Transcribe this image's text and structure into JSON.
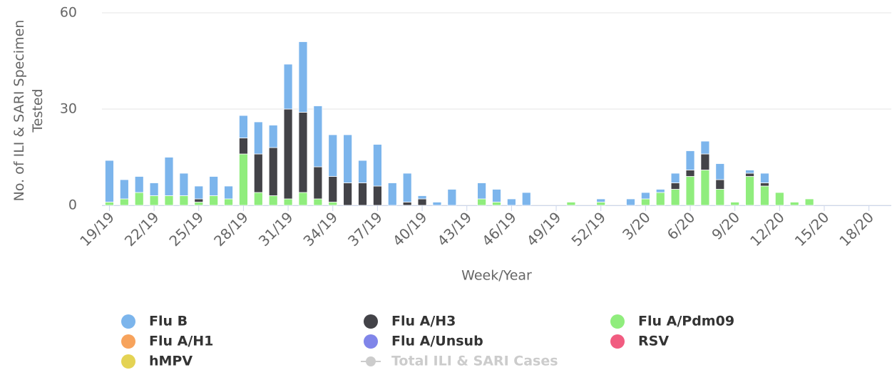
{
  "chart_data": {
    "type": "bar",
    "stacked": true,
    "y_axis_label": "No. of ILI & SARI Specimen Tested",
    "x_axis_label": "Week/Year",
    "categories": [
      "19/19",
      null,
      null,
      "22/19",
      null,
      null,
      "25/19",
      null,
      null,
      "28/19",
      null,
      null,
      "31/19",
      null,
      null,
      "34/19",
      null,
      null,
      "37/19",
      null,
      null,
      "40/19",
      null,
      null,
      "43/19",
      null,
      null,
      "46/19",
      null,
      null,
      "49/19",
      null,
      null,
      "52/19",
      null,
      null,
      "3/20",
      null,
      null,
      "6/20",
      null,
      null,
      "9/20",
      null,
      null,
      "12/20",
      null,
      null,
      "15/20",
      null,
      null,
      "18/20",
      null
    ],
    "ylim": [
      0,
      60
    ],
    "yticks": [
      0,
      30,
      60
    ],
    "grid": true,
    "series": [
      {
        "name": "Flu B",
        "color": "#7cb5ec",
        "values": [
          13,
          6,
          5,
          4,
          12,
          7,
          4,
          6,
          4,
          7,
          10,
          7,
          14,
          22,
          19,
          13,
          15,
          7,
          13,
          7,
          9,
          1,
          1,
          5,
          0,
          5,
          4,
          2,
          4,
          0,
          0,
          0,
          0,
          1,
          0,
          2,
          2,
          1,
          3,
          6,
          4,
          5,
          0,
          1,
          3,
          0,
          0,
          0,
          0,
          0,
          0,
          0,
          0
        ]
      },
      {
        "name": "Flu A/H3",
        "color": "#434348",
        "values": [
          0,
          0,
          0,
          0,
          0,
          0,
          1,
          0,
          0,
          5,
          12,
          15,
          28,
          25,
          10,
          8,
          7,
          7,
          6,
          0,
          1,
          2,
          0,
          0,
          0,
          0,
          0,
          0,
          0,
          0,
          0,
          0,
          0,
          0,
          0,
          0,
          0,
          0,
          2,
          2,
          5,
          3,
          0,
          1,
          1,
          0,
          0,
          0,
          0,
          0,
          0,
          0,
          0
        ]
      },
      {
        "name": "Flu A/Pdm09",
        "color": "#90ed7d",
        "values": [
          1,
          2,
          4,
          3,
          3,
          3,
          1,
          3,
          2,
          16,
          4,
          3,
          2,
          4,
          2,
          1,
          0,
          0,
          0,
          0,
          0,
          0,
          0,
          0,
          0,
          2,
          1,
          0,
          0,
          0,
          0,
          1,
          0,
          1,
          0,
          0,
          2,
          4,
          5,
          9,
          11,
          5,
          1,
          9,
          6,
          4,
          1,
          2,
          0,
          0,
          0,
          0,
          0
        ]
      },
      {
        "name": "Flu A/H1",
        "color": "#f7a35c",
        "values": [
          0,
          0,
          0,
          0,
          0,
          0,
          0,
          0,
          0,
          0,
          0,
          0,
          0,
          0,
          0,
          0,
          0,
          0,
          0,
          0,
          0,
          0,
          0,
          0,
          0,
          0,
          0,
          0,
          0,
          0,
          0,
          0,
          0,
          0,
          0,
          0,
          0,
          0,
          0,
          0,
          0,
          0,
          0,
          0,
          0,
          0,
          0,
          0,
          0,
          0,
          0,
          0,
          0
        ]
      },
      {
        "name": "Flu A/Unsub",
        "color": "#8085e9",
        "values": [
          0,
          0,
          0,
          0,
          0,
          0,
          0,
          0,
          0,
          0,
          0,
          0,
          0,
          0,
          0,
          0,
          0,
          0,
          0,
          0,
          0,
          0,
          0,
          0,
          0,
          0,
          0,
          0,
          0,
          0,
          0,
          0,
          0,
          0,
          0,
          0,
          0,
          0,
          0,
          0,
          0,
          0,
          0,
          0,
          0,
          0,
          0,
          0,
          0,
          0,
          0,
          0,
          0
        ]
      },
      {
        "name": "RSV",
        "color": "#f15c80",
        "values": [
          0,
          0,
          0,
          0,
          0,
          0,
          0,
          0,
          0,
          0,
          0,
          0,
          0,
          0,
          0,
          0,
          0,
          0,
          0,
          0,
          0,
          0,
          0,
          0,
          0,
          0,
          0,
          0,
          0,
          0,
          0,
          0,
          0,
          0,
          0,
          0,
          0,
          0,
          0,
          0,
          0,
          0,
          0,
          0,
          0,
          0,
          0,
          0,
          0,
          0,
          0,
          0,
          0
        ]
      },
      {
        "name": "hMPV",
        "color": "#e4d354",
        "values": [
          0,
          0,
          0,
          0,
          0,
          0,
          0,
          0,
          0,
          0,
          0,
          0,
          0,
          0,
          0,
          0,
          0,
          0,
          0,
          0,
          0,
          0,
          0,
          0,
          0,
          0,
          0,
          0,
          0,
          0,
          0,
          0,
          0,
          0,
          0,
          0,
          0,
          0,
          0,
          0,
          0,
          0,
          0,
          0,
          0,
          0,
          0,
          0,
          0,
          0,
          0,
          0,
          0
        ]
      },
      {
        "name": "Total ILI & SARI Cases",
        "type": "line",
        "color": "#cccccc",
        "visible": false,
        "values": [
          null,
          null,
          null,
          null,
          null,
          null,
          null,
          null,
          null,
          null,
          null,
          null,
          null,
          null,
          null,
          null,
          null,
          null,
          null,
          null,
          null,
          null,
          null,
          null,
          null,
          null,
          null,
          null,
          null,
          null,
          null,
          null,
          null,
          null,
          null,
          null,
          null,
          null,
          null,
          null,
          null,
          null,
          null,
          null,
          null,
          null,
          null,
          null,
          null,
          null,
          null,
          null,
          null
        ]
      }
    ]
  }
}
